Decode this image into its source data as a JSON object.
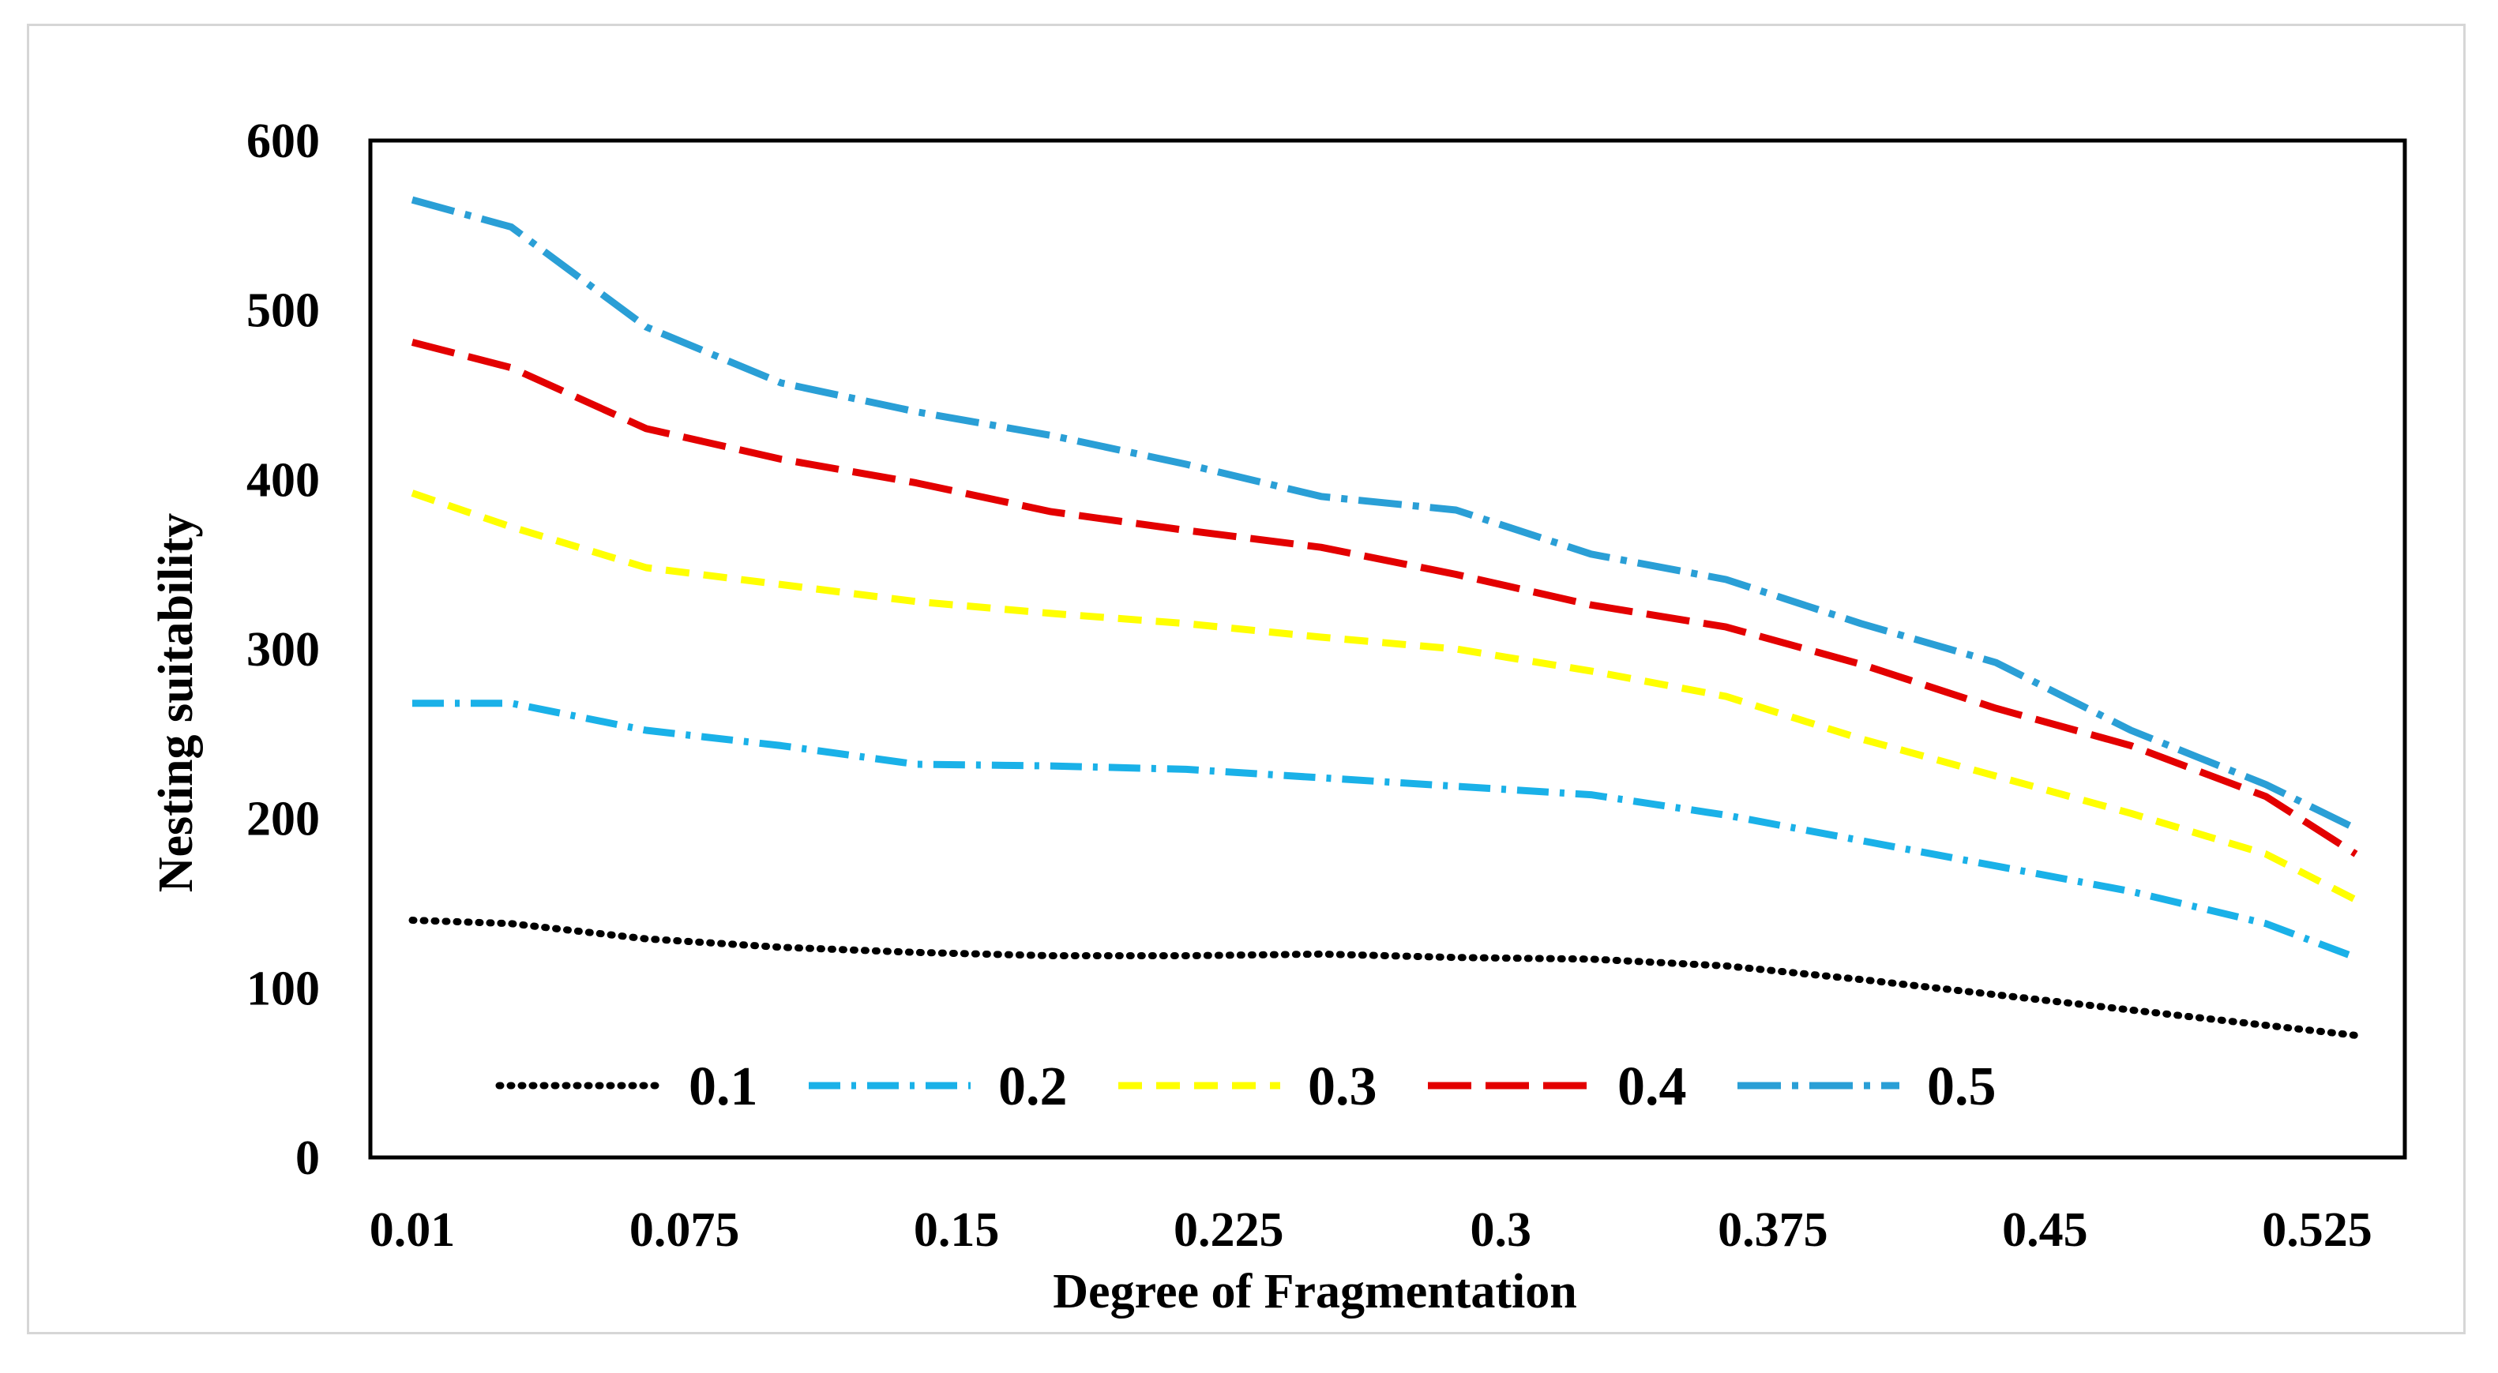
{
  "chart_data": {
    "type": "line",
    "title": "",
    "xlabel": "Degree of Fragmentation",
    "ylabel": "Nesting suitability",
    "x_tick_labels": [
      "0.01",
      "0.075",
      "0.15",
      "0.225",
      "0.3",
      "0.375",
      "0.45",
      "0.525"
    ],
    "x": [
      0.01,
      0.0375,
      0.075,
      0.1125,
      0.15,
      0.1875,
      0.225,
      0.2625,
      0.3,
      0.3375,
      0.375,
      0.4125,
      0.45,
      0.4875,
      0.525,
      0.55
    ],
    "ylim": [
      0,
      600
    ],
    "yticks": [
      0,
      100,
      200,
      300,
      400,
      500,
      600
    ],
    "grid": false,
    "legend_position": "bottom-inside",
    "series": [
      {
        "name": "0.1",
        "color": "#000000",
        "dash": "dotted",
        "values": [
          140,
          138,
          129,
          124,
          121,
          119,
          119,
          120,
          118,
          117,
          113,
          105,
          96,
          87,
          78,
          72
        ]
      },
      {
        "name": "0.2",
        "color": "#1ab1e8",
        "dash": "dash-dot",
        "values": [
          268,
          268,
          252,
          243,
          232,
          231,
          229,
          224,
          219,
          214,
          202,
          187,
          172,
          157,
          138,
          118
        ]
      },
      {
        "name": "0.3",
        "color": "#ffff00",
        "dash": "dash",
        "values": [
          392,
          372,
          348,
          338,
          328,
          321,
          315,
          307,
          300,
          287,
          272,
          247,
          225,
          203,
          179,
          152
        ]
      },
      {
        "name": "0.4",
        "color": "#e30000",
        "dash": "long-dash",
        "values": [
          481,
          466,
          430,
          412,
          398,
          381,
          370,
          360,
          344,
          326,
          313,
          291,
          265,
          243,
          213,
          179
        ]
      },
      {
        "name": "0.5",
        "color": "#2a9fd6",
        "dash": "long-dash-dot",
        "values": [
          565,
          549,
          490,
          457,
          440,
          426,
          409,
          390,
          382,
          356,
          341,
          315,
          292,
          252,
          220,
          194
        ]
      }
    ]
  }
}
